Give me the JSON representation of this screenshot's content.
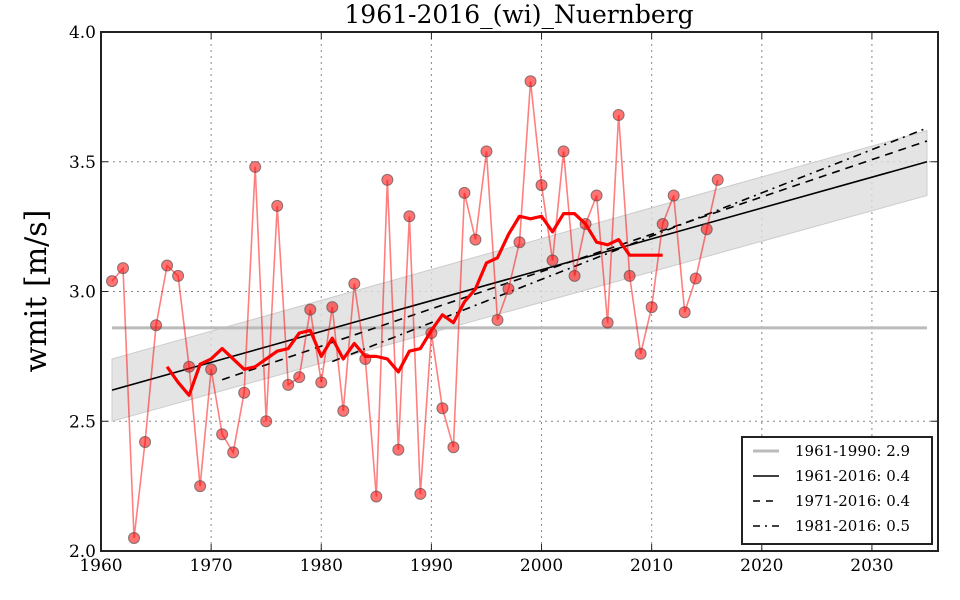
{
  "chart_data": {
    "type": "line",
    "title": "1961-2016_(wi)_Nuernberg",
    "xlabel": "",
    "ylabel": "wmit [m/s]",
    "xlim": [
      1960,
      2036
    ],
    "ylim": [
      2.0,
      4.0
    ],
    "grid": true,
    "x_ticks": [
      1960,
      1970,
      1980,
      1990,
      2000,
      2010,
      2020,
      2030
    ],
    "y_ticks": [
      "2.0",
      "2.5",
      "3.0",
      "3.5",
      "4.0"
    ],
    "legend_position": "bottom-right",
    "colors": {
      "annual": "#ff0000",
      "moving_average": "#ff0000",
      "reference": "#bbbbbb",
      "trend": "#000000",
      "band": "#dddddd"
    },
    "series": [
      {
        "name": "annual",
        "x": [
          1961,
          1962,
          1963,
          1964,
          1965,
          1966,
          1967,
          1968,
          1969,
          1970,
          1971,
          1972,
          1973,
          1974,
          1975,
          1976,
          1977,
          1978,
          1979,
          1980,
          1981,
          1982,
          1983,
          1984,
          1985,
          1986,
          1987,
          1988,
          1989,
          1990,
          1991,
          1992,
          1993,
          1994,
          1995,
          1996,
          1997,
          1998,
          1999,
          2000,
          2001,
          2002,
          2003,
          2004,
          2005,
          2006,
          2007,
          2008,
          2009,
          2010,
          2011,
          2012,
          2013,
          2014,
          2015,
          2016
        ],
        "values": [
          3.04,
          3.09,
          2.05,
          2.42,
          2.87,
          3.1,
          3.06,
          2.71,
          2.25,
          2.7,
          2.45,
          2.38,
          2.61,
          3.48,
          2.5,
          3.33,
          2.64,
          2.67,
          2.93,
          2.65,
          2.94,
          2.54,
          3.03,
          2.74,
          2.21,
          3.43,
          2.39,
          3.29,
          2.22,
          2.84,
          2.55,
          2.4,
          3.38,
          3.2,
          3.54,
          2.89,
          3.01,
          3.19,
          3.81,
          3.41,
          3.12,
          3.54,
          3.06,
          3.26,
          3.37,
          2.88,
          3.68,
          3.06,
          2.76,
          2.94,
          3.26,
          3.37,
          2.92,
          3.05,
          3.24,
          3.43
        ]
      },
      {
        "name": "moving_average",
        "x": [
          1966,
          1967,
          1968,
          1969,
          1970,
          1971,
          1972,
          1973,
          1974,
          1975,
          1976,
          1977,
          1978,
          1979,
          1980,
          1981,
          1982,
          1983,
          1984,
          1985,
          1986,
          1987,
          1988,
          1989,
          1990,
          1991,
          1992,
          1993,
          1994,
          1995,
          1996,
          1997,
          1998,
          1999,
          2000,
          2001,
          2002,
          2003,
          2004,
          2005,
          2006,
          2007,
          2008,
          2009,
          2010,
          2011
        ],
        "values": [
          2.71,
          2.65,
          2.6,
          2.72,
          2.74,
          2.78,
          2.74,
          2.7,
          2.71,
          2.74,
          2.77,
          2.78,
          2.84,
          2.85,
          2.75,
          2.82,
          2.74,
          2.8,
          2.75,
          2.75,
          2.74,
          2.69,
          2.77,
          2.78,
          2.85,
          2.91,
          2.88,
          2.96,
          3.01,
          3.11,
          3.13,
          3.22,
          3.29,
          3.28,
          3.29,
          3.23,
          3.3,
          3.3,
          3.26,
          3.19,
          3.18,
          3.2,
          3.14,
          3.14,
          3.14,
          3.14
        ]
      }
    ],
    "reference_line": {
      "label": "1961-1990: 2.9",
      "value": 2.86,
      "x_range": [
        1961,
        2035
      ]
    },
    "trend_lines": [
      {
        "label": "1961-2016: 0.4",
        "style": "solid",
        "x": [
          1961,
          2035
        ],
        "y": [
          2.62,
          3.5
        ]
      },
      {
        "label": "1971-2016: 0.4",
        "style": "dashed",
        "x": [
          1971,
          2035
        ],
        "y": [
          2.66,
          3.58
        ]
      },
      {
        "label": "1981-2016: 0.5",
        "style": "dashdot",
        "x": [
          1981,
          2035
        ],
        "y": [
          2.73,
          3.63
        ]
      }
    ],
    "confidence_band": {
      "x": [
        1961,
        2035
      ],
      "lower": [
        2.5,
        3.37
      ],
      "upper": [
        2.74,
        3.62
      ]
    },
    "legend": [
      {
        "label": "1961-1990: 2.9",
        "style": "reference"
      },
      {
        "label": "1961-2016: 0.4",
        "style": "solid"
      },
      {
        "label": "1971-2016: 0.4",
        "style": "dashed"
      },
      {
        "label": "1981-2016: 0.5",
        "style": "dashdot"
      }
    ]
  }
}
